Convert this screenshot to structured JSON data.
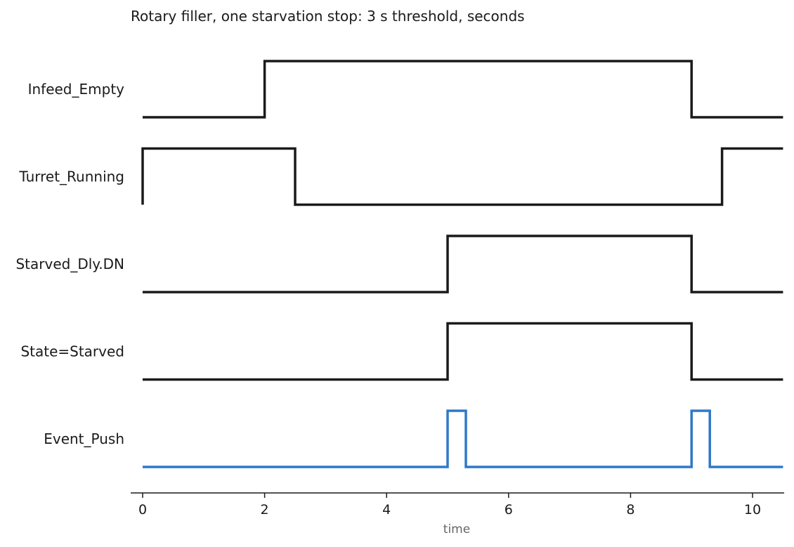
{
  "chart_data": {
    "type": "line",
    "subtype": "digital-timing-diagram",
    "title": "Rotary filler, one starvation stop: 3 s threshold, seconds",
    "xlabel": "time",
    "xlim": [
      -0.2,
      10.5
    ],
    "xticks": [
      0,
      2,
      4,
      6,
      8,
      10
    ],
    "xtick_labels": [
      "0",
      "2",
      "4",
      "6",
      "8",
      "10"
    ],
    "grid": false,
    "series": [
      {
        "name": "Infeed_Empty",
        "color": "#1a1a1a",
        "x": [
          0,
          2,
          2,
          9,
          9,
          10.5
        ],
        "y": [
          0,
          0,
          1,
          1,
          0,
          0
        ]
      },
      {
        "name": "Turret_Running",
        "color": "#1a1a1a",
        "x": [
          0,
          0,
          2.5,
          2.5,
          9.5,
          9.5,
          10.5
        ],
        "y": [
          0,
          1,
          1,
          0,
          0,
          1,
          1
        ]
      },
      {
        "name": "Starved_Dly.DN",
        "color": "#1a1a1a",
        "x": [
          0,
          5,
          5,
          9,
          9,
          10.5
        ],
        "y": [
          0,
          0,
          1,
          1,
          0,
          0
        ]
      },
      {
        "name": "State=Starved",
        "color": "#1a1a1a",
        "x": [
          0,
          5,
          5,
          9,
          9,
          10.5
        ],
        "y": [
          0,
          0,
          1,
          1,
          0,
          0
        ]
      },
      {
        "name": "Event_Push",
        "color": "#2f78c8",
        "x": [
          0,
          5,
          5,
          5.3,
          5.3,
          9,
          9,
          9.3,
          9.3,
          10.5
        ],
        "y": [
          0,
          0,
          1,
          1,
          0,
          0,
          1,
          1,
          0,
          0
        ]
      }
    ]
  }
}
